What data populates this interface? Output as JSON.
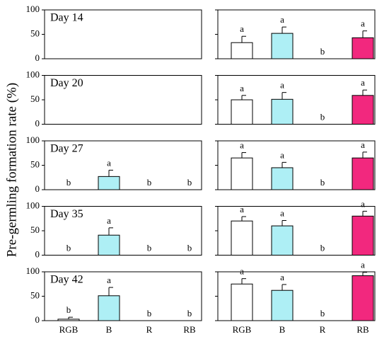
{
  "ylabel": "Pre-germling formation rate (%)",
  "chart_data": [
    {
      "type": "bar",
      "title": "Day 14",
      "ylim": [
        0,
        100
      ],
      "yticks": [
        0,
        50,
        100
      ]
    },
    {
      "type": "bar",
      "values": [
        33,
        52,
        0,
        43
      ],
      "errors": [
        13,
        13,
        null,
        14
      ],
      "letters": [
        "a",
        "a",
        "b",
        "a"
      ],
      "colors": [
        "#ffffff",
        "#aeeff5",
        "#ffffff",
        "#f2287e"
      ],
      "ylim": [
        0,
        100
      ],
      "yticks": [
        0,
        50,
        100
      ]
    },
    {
      "type": "bar",
      "title": "Day 20",
      "ylim": [
        0,
        100
      ],
      "yticks": [
        0,
        50,
        100
      ]
    },
    {
      "type": "bar",
      "values": [
        50,
        51,
        0,
        59
      ],
      "errors": [
        9,
        14,
        null,
        11
      ],
      "letters": [
        "a",
        "a",
        "b",
        "a"
      ],
      "colors": [
        "#ffffff",
        "#aeeff5",
        "#ffffff",
        "#f2287e"
      ],
      "ylim": [
        0,
        100
      ],
      "yticks": [
        0,
        50,
        100
      ]
    },
    {
      "type": "bar",
      "title": "Day 27",
      "values": [
        0,
        27,
        0,
        0
      ],
      "errors": [
        null,
        13,
        null,
        null
      ],
      "letters": [
        "b",
        "a",
        "b",
        "b"
      ],
      "colors": [
        "#ffffff",
        "#aeeff5",
        "#ffffff",
        "#f2287e"
      ],
      "ylim": [
        0,
        100
      ],
      "yticks": [
        0,
        50,
        100
      ]
    },
    {
      "type": "bar",
      "values": [
        65,
        45,
        0,
        65
      ],
      "errors": [
        11,
        11,
        null,
        12
      ],
      "letters": [
        "a",
        "a",
        "b",
        "a"
      ],
      "colors": [
        "#ffffff",
        "#aeeff5",
        "#ffffff",
        "#f2287e"
      ],
      "ylim": [
        0,
        100
      ],
      "yticks": [
        0,
        50,
        100
      ]
    },
    {
      "type": "bar",
      "title": "Day 35",
      "values": [
        0,
        41,
        0,
        0
      ],
      "errors": [
        null,
        15,
        null,
        null
      ],
      "letters": [
        "b",
        "a",
        "b",
        "b"
      ],
      "colors": [
        "#ffffff",
        "#aeeff5",
        "#ffffff",
        "#f2287e"
      ],
      "ylim": [
        0,
        100
      ],
      "yticks": [
        0,
        50,
        100
      ]
    },
    {
      "type": "bar",
      "values": [
        70,
        60,
        0,
        80
      ],
      "errors": [
        9,
        11,
        null,
        10
      ],
      "letters": [
        "a",
        "a",
        "b",
        "a"
      ],
      "colors": [
        "#ffffff",
        "#aeeff5",
        "#ffffff",
        "#f2287e"
      ],
      "ylim": [
        0,
        100
      ],
      "yticks": [
        0,
        50,
        100
      ]
    },
    {
      "type": "bar",
      "title": "Day 42",
      "categories": [
        "RGB",
        "B",
        "R",
        "RB"
      ],
      "values": [
        3,
        51,
        0,
        0
      ],
      "errors": [
        4,
        17,
        null,
        null
      ],
      "letters": [
        "b",
        "a",
        "b",
        "b"
      ],
      "colors": [
        "#ffffff",
        "#aeeff5",
        "#ffffff",
        "#f2287e"
      ],
      "ylim": [
        0,
        100
      ],
      "yticks": [
        0,
        50,
        100
      ]
    },
    {
      "type": "bar",
      "categories": [
        "RGB",
        "B",
        "R",
        "RB"
      ],
      "values": [
        75,
        62,
        0,
        92
      ],
      "errors": [
        11,
        12,
        null,
        7
      ],
      "letters": [
        "a",
        "a",
        "b",
        "a"
      ],
      "colors": [
        "#ffffff",
        "#aeeff5",
        "#ffffff",
        "#f2287e"
      ],
      "ylim": [
        0,
        100
      ],
      "yticks": [
        0,
        50,
        100
      ]
    }
  ]
}
